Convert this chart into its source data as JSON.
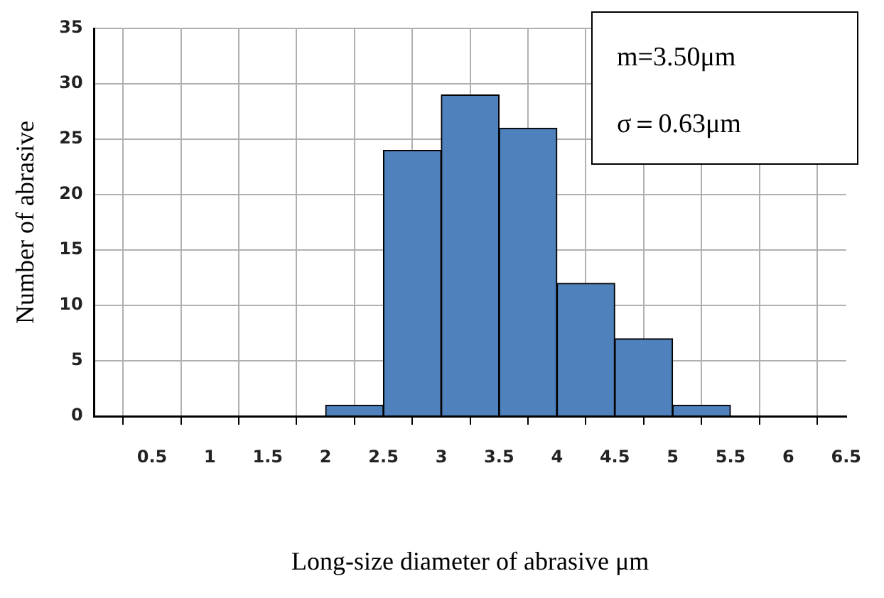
{
  "chart_data": {
    "type": "histogram",
    "xlabel": "Long-size diameter of abrasive μm",
    "ylabel": "Number of abrasive",
    "bins": [
      0,
      0.5,
      1,
      1.5,
      2,
      2.5,
      3,
      3.5,
      4,
      4.5,
      5,
      5.5,
      6,
      6.5
    ],
    "values": [
      0,
      0,
      0,
      0,
      1,
      24,
      29,
      26,
      12,
      7,
      1,
      0,
      0
    ],
    "color": "#4f81bd",
    "xlim": [
      0,
      6.5
    ],
    "xticks": [
      {
        "value": 0,
        "label": null
      },
      0.5,
      1,
      1.5,
      2,
      2.5,
      3,
      3.5,
      4,
      4.5,
      5,
      5.5,
      6,
      6.5
    ],
    "ylim": [
      0,
      35
    ],
    "yticks": [
      0,
      5,
      10,
      15,
      20,
      25,
      30,
      35
    ],
    "grid": true,
    "legend": false,
    "annotations": [
      "m=3.50μm",
      "σ＝0.63μm"
    ]
  }
}
